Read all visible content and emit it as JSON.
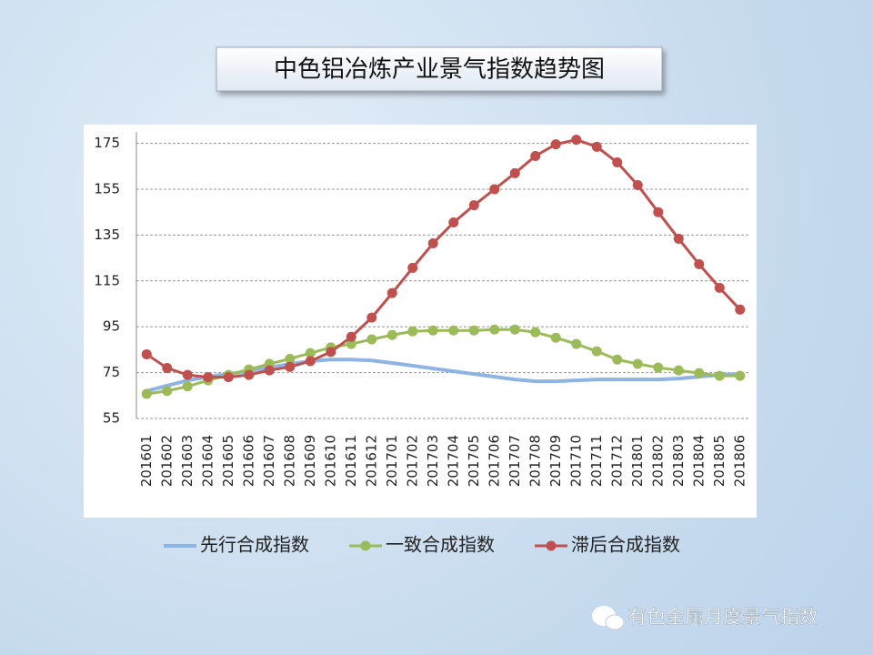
{
  "chart_data": {
    "type": "line",
    "title": "中色铝冶炼产业景气指数趋势图",
    "watermark": "有色金属月度景气指数",
    "categories": [
      "201601",
      "201602",
      "201603",
      "201604",
      "201605",
      "201606",
      "201607",
      "201608",
      "201609",
      "201610",
      "201611",
      "201612",
      "201701",
      "201702",
      "201703",
      "201704",
      "201705",
      "201706",
      "201707",
      "201708",
      "201709",
      "201710",
      "201711",
      "201712",
      "201801",
      "201802",
      "201803",
      "201804",
      "201805",
      "201806"
    ],
    "series": [
      {
        "name": "先行合成指数",
        "color": "#8eb4e3",
        "marker": false,
        "values": [
          67,
          69.3,
          71.6,
          73.2,
          74.4,
          75.6,
          77.2,
          78.8,
          80,
          80.7,
          80.7,
          80.3,
          79.2,
          78,
          76.8,
          75.6,
          74.4,
          73.2,
          72,
          71.2,
          71.2,
          71.6,
          72,
          72,
          72,
          72,
          72.4,
          73.2,
          74,
          74.4
        ]
      },
      {
        "name": "一致合成指数",
        "color": "#9bbb59",
        "marker": true,
        "values": [
          65.7,
          67,
          69,
          71.6,
          74,
          76.4,
          78.8,
          81,
          83.5,
          86,
          87.5,
          89.5,
          91.4,
          93,
          93.4,
          93.4,
          93.4,
          93.8,
          93.8,
          92.6,
          90.2,
          87.5,
          84.3,
          80.7,
          78.8,
          77.2,
          76,
          74.8,
          73.6,
          73.6
        ]
      },
      {
        "name": "滞后合成指数",
        "color": "#c0504d",
        "marker": true,
        "values": [
          83,
          77,
          74,
          73,
          73,
          74,
          76,
          77.5,
          80,
          84,
          90.6,
          99,
          109.7,
          120.7,
          131.4,
          140.5,
          148,
          155,
          162,
          169.5,
          174.6,
          176.6,
          173.5,
          166.7,
          156.8,
          145,
          133.4,
          122.3,
          112,
          102.5
        ]
      }
    ],
    "ylim": [
      55,
      180
    ],
    "yticks": [
      55,
      75,
      95,
      115,
      135,
      155,
      175
    ],
    "grid": true,
    "legend": "bottom"
  }
}
